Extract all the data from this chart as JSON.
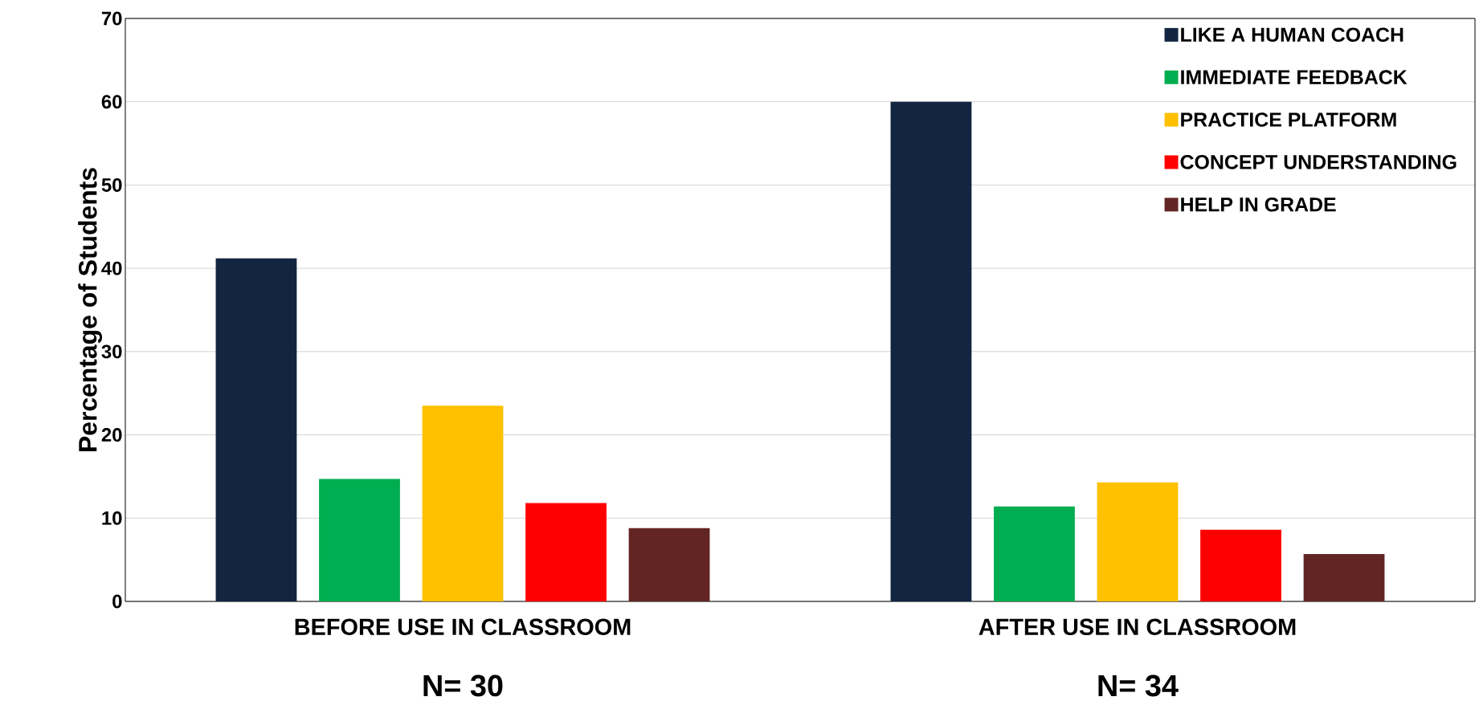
{
  "chart_data": {
    "type": "bar",
    "ylabel": "Percentage of Students",
    "categories": [
      "BEFORE USE IN CLASSROOM",
      "AFTER USE IN CLASSROOM"
    ],
    "series": [
      {
        "name": "LIKE A HUMAN COACH",
        "color": "#132641",
        "values": [
          41.2,
          60
        ]
      },
      {
        "name": "IMMEDIATE FEEDBACK",
        "color": "#00ad50",
        "values": [
          14.7,
          11.4
        ]
      },
      {
        "name": "PRACTICE PLATFORM",
        "color": "#ffc000",
        "values": [
          23.5,
          14.3
        ]
      },
      {
        "name": "CONCEPT UNDERSTANDING",
        "color": "#ff0000",
        "values": [
          11.8,
          8.6
        ]
      },
      {
        "name": "HELP IN GRADE",
        "color": "#632523",
        "values": [
          8.8,
          5.7
        ]
      }
    ],
    "ylim": [
      0,
      70
    ],
    "yticks": [
      0,
      10,
      20,
      30,
      40,
      50,
      60,
      70
    ],
    "grid": "y",
    "legend": "top right",
    "annotations": [
      "N= 30",
      "N= 34"
    ]
  }
}
